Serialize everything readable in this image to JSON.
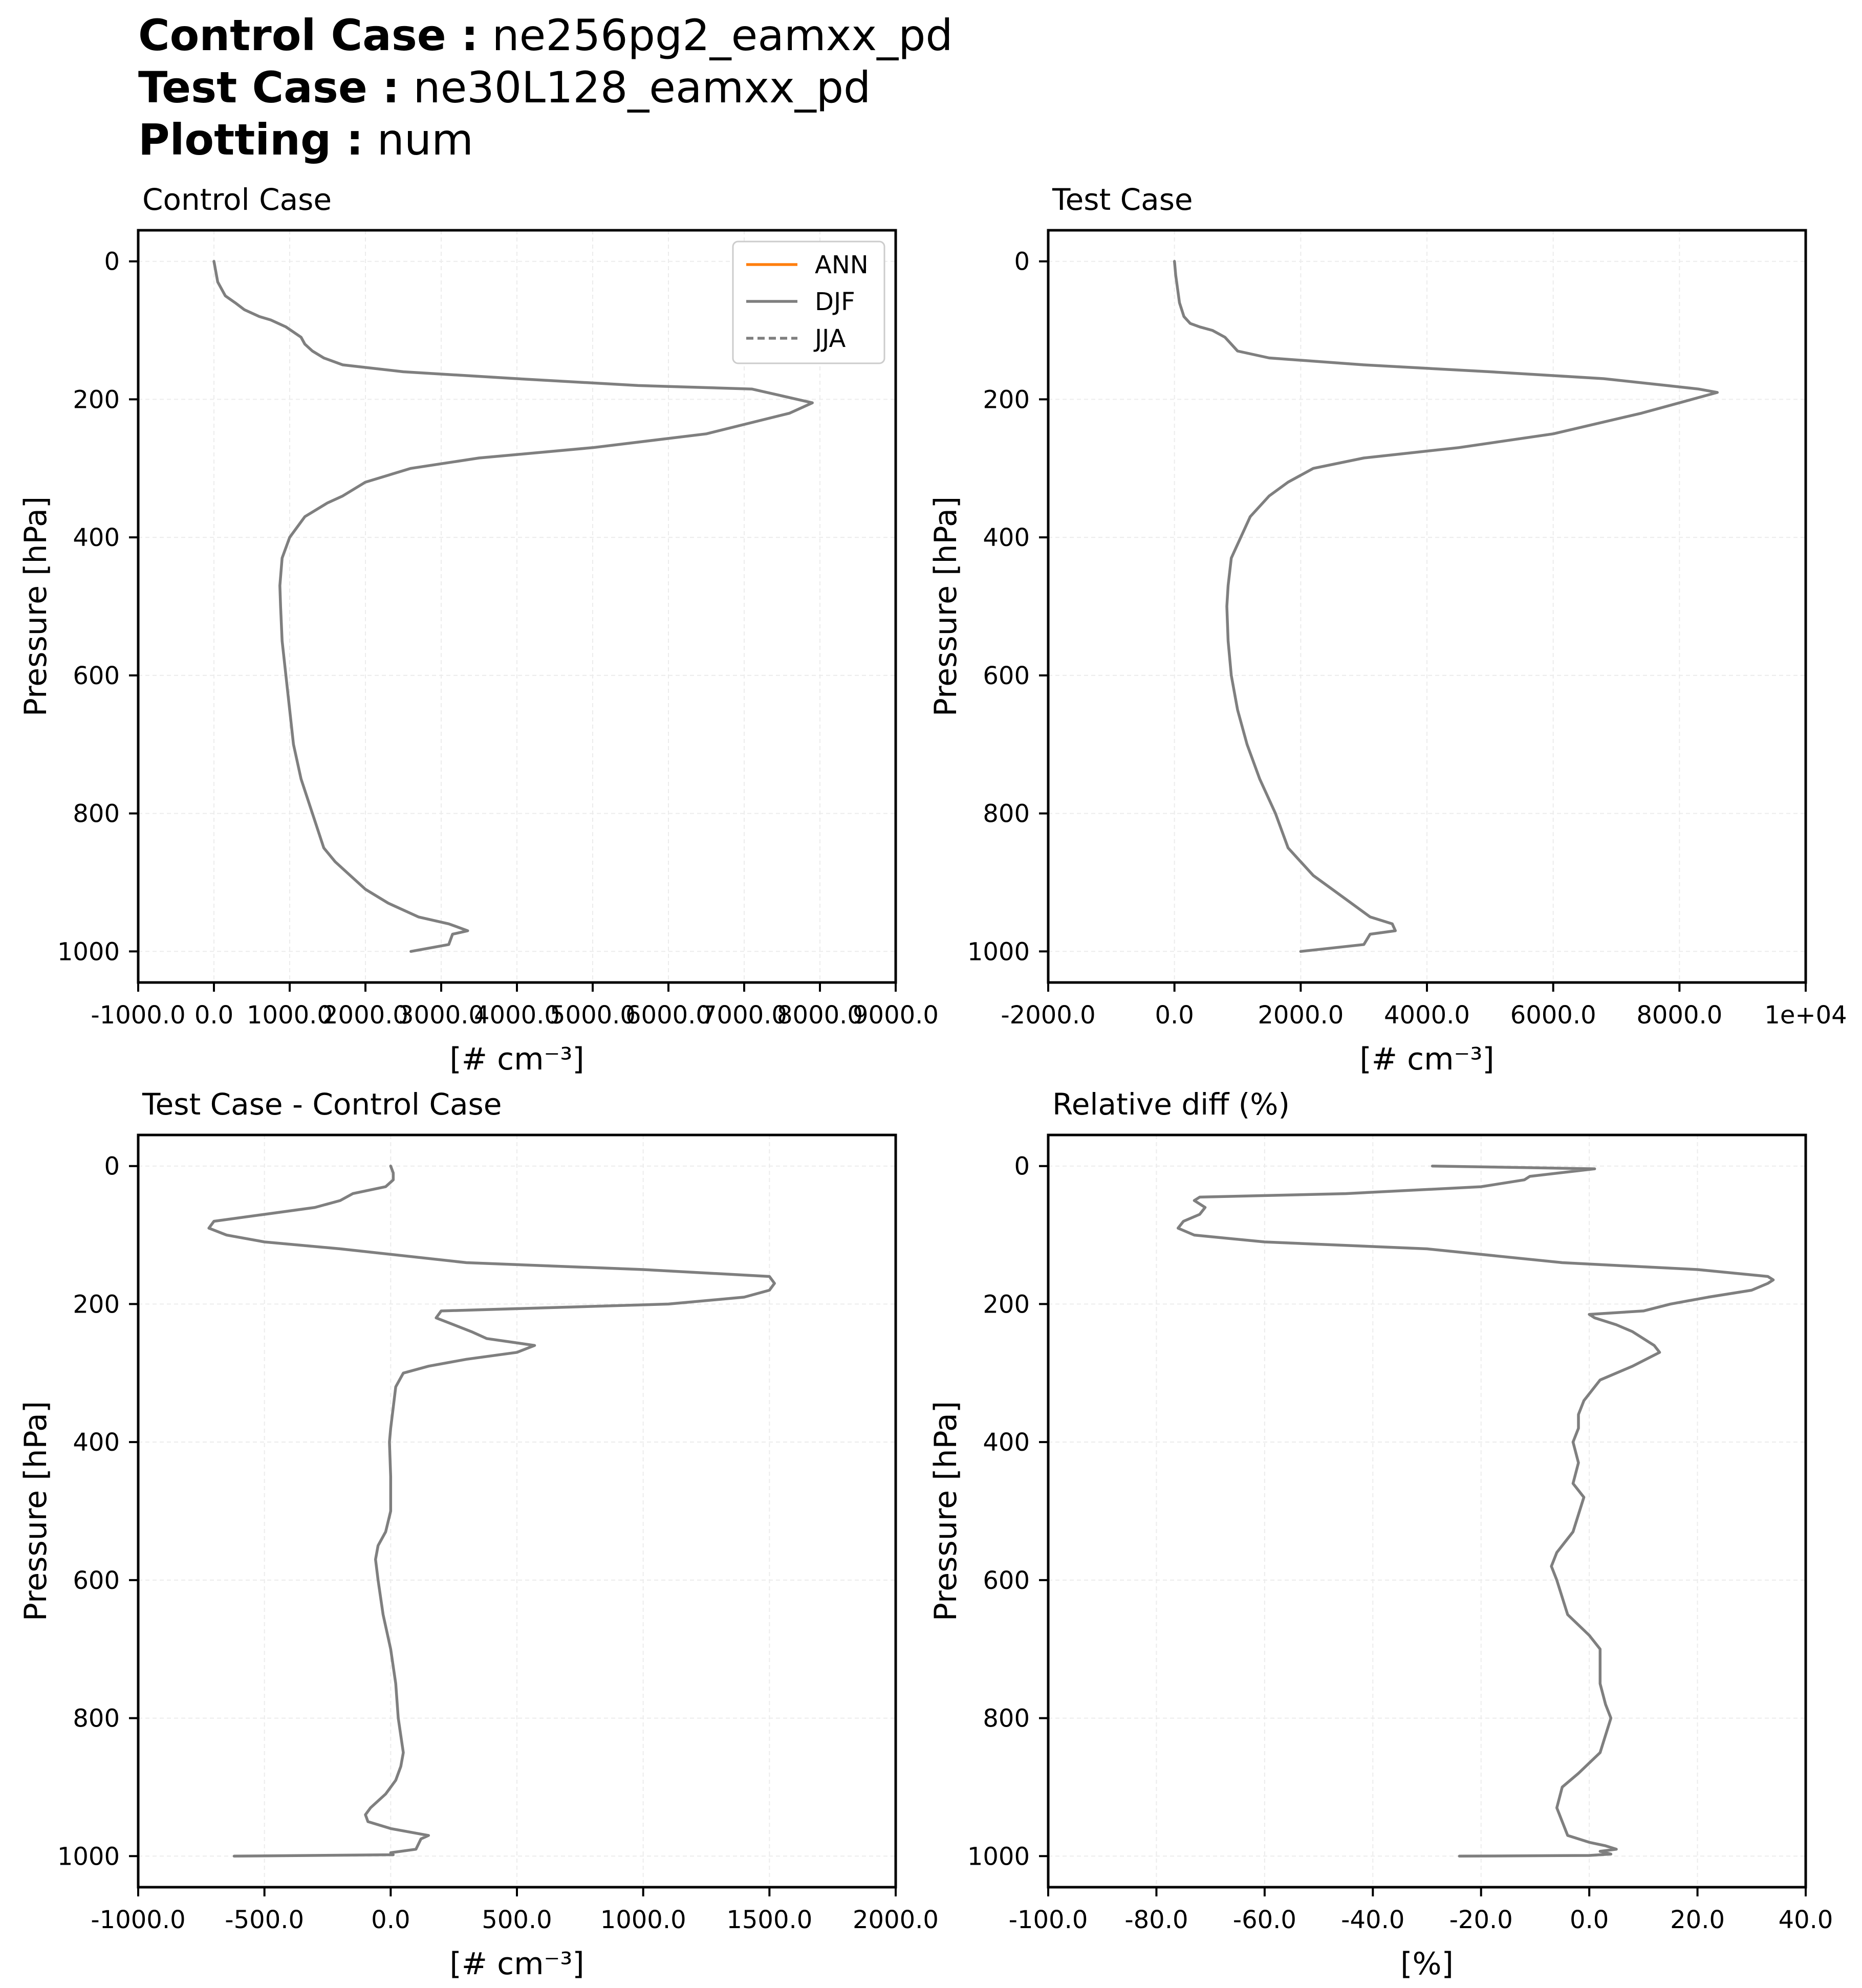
{
  "header": {
    "control_label": "Control Case :",
    "control_value": "ne256pg2_eamxx_pd",
    "test_label": "Test Case :",
    "test_value": "ne30L128_eamxx_pd",
    "plotting_label": "Plotting :",
    "plotting_value": "num"
  },
  "legend": [
    {
      "label": "ANN",
      "color": "#ff7f0e",
      "style": "solid"
    },
    {
      "label": "DJF",
      "color": "#7f7f7f",
      "style": "solid"
    },
    {
      "label": "JJA",
      "color": "#7f7f7f",
      "style": "dashed"
    }
  ],
  "chart_data": [
    {
      "type": "line",
      "title": "Control Case",
      "xlabel": "[# cm⁻³]",
      "ylabel": "Pressure [hPa]",
      "xlim": [
        -1000,
        9000
      ],
      "ylim": [
        1045,
        -45
      ],
      "xticks": [
        -1000,
        0,
        1000,
        2000,
        3000,
        4000,
        5000,
        6000,
        7000,
        8000,
        9000
      ],
      "xtick_labels": [
        "-1000.0",
        "0.0",
        "1000.0",
        "2000.0",
        "3000.0",
        "4000.0",
        "5000.0",
        "6000.0",
        "7000.0",
        "8000.0",
        "9000.0"
      ],
      "yticks": [
        0,
        200,
        400,
        600,
        800,
        1000
      ],
      "ytick_labels": [
        "0",
        "200",
        "400",
        "600",
        "800",
        "1000"
      ],
      "grid": true,
      "legend": "top-right",
      "series": [
        {
          "name": "DJF",
          "color": "#7f7f7f",
          "style": "solid",
          "x": [
            0,
            50,
            150,
            280,
            400,
            600,
            750,
            950,
            1150,
            1200,
            1300,
            1450,
            1700,
            2500,
            4000,
            5600,
            7100,
            7700,
            7900,
            7600,
            6500,
            5000,
            3500,
            2600,
            2000,
            1700,
            1500,
            1200,
            1000,
            900,
            870,
            880,
            900,
            950,
            1000,
            1050,
            1150,
            1300,
            1450,
            1600,
            1800,
            2000,
            2300,
            2700,
            3100,
            3350,
            3150,
            3100,
            2600
          ],
          "y": [
            0,
            30,
            50,
            60,
            70,
            80,
            85,
            95,
            110,
            120,
            130,
            140,
            150,
            160,
            170,
            180,
            185,
            200,
            205,
            220,
            250,
            270,
            285,
            300,
            320,
            340,
            350,
            370,
            400,
            430,
            470,
            500,
            550,
            600,
            650,
            700,
            750,
            800,
            850,
            870,
            890,
            910,
            930,
            950,
            960,
            970,
            975,
            990,
            1000
          ]
        }
      ]
    },
    {
      "type": "line",
      "title": "Test Case",
      "xlabel": "[# cm⁻³]",
      "ylabel": "Pressure [hPa]",
      "xlim": [
        -2000,
        10000
      ],
      "ylim": [
        1045,
        -45
      ],
      "xticks": [
        -2000,
        0,
        2000,
        4000,
        6000,
        8000,
        10000
      ],
      "xtick_labels": [
        "-2000.0",
        "0.0",
        "2000.0",
        "4000.0",
        "6000.0",
        "8000.0",
        "1e+04"
      ],
      "yticks": [
        0,
        200,
        400,
        600,
        800,
        1000
      ],
      "ytick_labels": [
        "0",
        "200",
        "400",
        "600",
        "800",
        "1000"
      ],
      "grid": true,
      "series": [
        {
          "name": "DJF",
          "color": "#7f7f7f",
          "style": "solid",
          "x": [
            0,
            20,
            50,
            80,
            150,
            250,
            400,
            600,
            800,
            900,
            1000,
            1500,
            3000,
            5000,
            6800,
            7800,
            8300,
            8600,
            8200,
            7400,
            6000,
            4500,
            3000,
            2200,
            1800,
            1500,
            1200,
            1050,
            900,
            850,
            830,
            850,
            900,
            1000,
            1150,
            1350,
            1600,
            1800,
            2000,
            2200,
            2500,
            2800,
            3100,
            3450,
            3500,
            3100,
            3000,
            2000
          ],
          "y": [
            0,
            20,
            40,
            60,
            80,
            90,
            95,
            100,
            110,
            120,
            130,
            140,
            150,
            160,
            170,
            180,
            185,
            190,
            200,
            220,
            250,
            270,
            285,
            300,
            320,
            340,
            370,
            400,
            430,
            470,
            500,
            550,
            600,
            650,
            700,
            750,
            800,
            850,
            870,
            890,
            910,
            930,
            950,
            960,
            970,
            975,
            990,
            1000
          ]
        }
      ]
    },
    {
      "type": "line",
      "title": "Test Case - Control Case",
      "xlabel": "[# cm⁻³]",
      "ylabel": "Pressure [hPa]",
      "xlim": [
        -1000,
        2000
      ],
      "ylim": [
        1045,
        -45
      ],
      "xticks": [
        -1000,
        -500,
        0,
        500,
        1000,
        1500,
        2000
      ],
      "xtick_labels": [
        "-1000.0",
        "-500.0",
        "0.0",
        "500.0",
        "1000.0",
        "1500.0",
        "2000.0"
      ],
      "yticks": [
        0,
        200,
        400,
        600,
        800,
        1000
      ],
      "ytick_labels": [
        "0",
        "200",
        "400",
        "600",
        "800",
        "1000"
      ],
      "grid": true,
      "series": [
        {
          "name": "DJF",
          "color": "#7f7f7f",
          "style": "solid",
          "x": [
            0,
            10,
            10,
            -20,
            -150,
            -200,
            -300,
            -500,
            -700,
            -720,
            -650,
            -500,
            -200,
            300,
            1000,
            1500,
            1520,
            1500,
            1400,
            1100,
            200,
            180,
            320,
            380,
            570,
            500,
            300,
            150,
            50,
            20,
            10,
            0,
            -5,
            0,
            0,
            -20,
            -50,
            -60,
            -50,
            -30,
            0,
            20,
            30,
            50,
            40,
            20,
            -20,
            -80,
            -100,
            -90,
            0,
            150,
            120,
            100,
            0,
            10,
            -620
          ],
          "y": [
            0,
            10,
            20,
            30,
            40,
            50,
            60,
            70,
            80,
            90,
            100,
            110,
            120,
            140,
            150,
            160,
            170,
            180,
            190,
            200,
            210,
            220,
            240,
            250,
            260,
            270,
            280,
            290,
            300,
            320,
            350,
            380,
            400,
            450,
            500,
            530,
            550,
            570,
            600,
            650,
            700,
            750,
            800,
            850,
            870,
            890,
            910,
            930,
            940,
            950,
            960,
            970,
            975,
            990,
            995,
            998,
            1000
          ]
        }
      ]
    },
    {
      "type": "line",
      "title": "Relative diff (%)",
      "xlabel": "[%]",
      "ylabel": "Pressure [hPa]",
      "xlim": [
        -100,
        40
      ],
      "ylim": [
        1045,
        -45
      ],
      "xticks": [
        -100,
        -80,
        -60,
        -40,
        -20,
        0,
        20,
        40
      ],
      "xtick_labels": [
        "-100.0",
        "-80.0",
        "-60.0",
        "-40.0",
        "-20.0",
        "0.0",
        "20.0",
        "40.0"
      ],
      "yticks": [
        0,
        200,
        400,
        600,
        800,
        1000
      ],
      "ytick_labels": [
        "0",
        "200",
        "400",
        "600",
        "800",
        "1000"
      ],
      "grid": true,
      "series": [
        {
          "name": "DJF",
          "color": "#7f7f7f",
          "style": "solid",
          "x": [
            -29,
            1,
            -11,
            -12,
            -20,
            -45,
            -72,
            -73,
            -71,
            -72,
            -75,
            -76,
            -73,
            -60,
            -30,
            -5,
            20,
            33,
            34,
            33,
            30,
            22,
            15,
            10,
            0,
            1,
            5,
            8,
            12,
            13,
            8,
            2,
            -1,
            -2,
            -2,
            -3,
            -2,
            -3,
            -1,
            -3,
            -6,
            -7,
            -6,
            -4,
            0,
            2,
            2,
            3,
            4,
            2,
            -2,
            -5,
            -6,
            -5,
            -4,
            0,
            3,
            5,
            2,
            4,
            0,
            -24
          ],
          "y": [
            0,
            4,
            15,
            20,
            30,
            40,
            45,
            50,
            60,
            70,
            80,
            90,
            100,
            110,
            120,
            140,
            150,
            160,
            165,
            170,
            180,
            190,
            200,
            210,
            215,
            220,
            230,
            240,
            260,
            270,
            290,
            310,
            340,
            360,
            380,
            400,
            430,
            460,
            480,
            530,
            560,
            580,
            600,
            650,
            680,
            700,
            750,
            780,
            800,
            850,
            880,
            900,
            930,
            950,
            970,
            980,
            985,
            990,
            993,
            997,
            999,
            1000
          ]
        }
      ]
    }
  ]
}
